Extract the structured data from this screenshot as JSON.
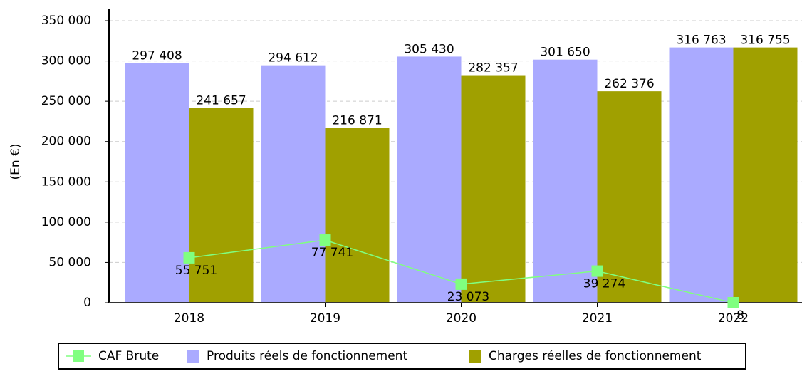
{
  "chart_data": {
    "type": "bar",
    "y_label": "(En €)",
    "categories": [
      "2018",
      "2019",
      "2020",
      "2021",
      "2022"
    ],
    "series": [
      {
        "name": "CAF Brute",
        "type": "line",
        "color": "#80ff80",
        "values": [
          55751,
          77741,
          23073,
          39274,
          8
        ],
        "value_labels": [
          "55 751",
          "77 741",
          "23 073",
          "39 274",
          "8"
        ]
      },
      {
        "name": "Produits réels de fonctionnement",
        "type": "bar",
        "color": "#aaaaff",
        "values": [
          297408,
          294612,
          305430,
          301650,
          316763
        ],
        "value_labels": [
          "297 408",
          "294 612",
          "305 430",
          "301 650",
          "316 763"
        ]
      },
      {
        "name": "Charges réelles de fonctionnement",
        "type": "bar",
        "color": "#a0a000",
        "values": [
          241657,
          216871,
          282357,
          262376,
          316755
        ],
        "value_labels": [
          "241 657",
          "216 871",
          "282 357",
          "262 376",
          "316 755"
        ]
      }
    ],
    "ylim": [
      0,
      350000
    ],
    "yticks": [
      0,
      {
        "value": 50000,
        "label": "50 000"
      },
      {
        "value": 100000,
        "label": "100 000"
      },
      {
        "value": 150000,
        "label": "150 000"
      },
      {
        "value": 200000,
        "label": "200 000"
      },
      {
        "value": 250000,
        "label": "250 000"
      },
      {
        "value": 300000,
        "label": "300 000"
      },
      {
        "value": 350000,
        "label": "350 000"
      }
    ],
    "grid": true,
    "legend": "bottom"
  }
}
